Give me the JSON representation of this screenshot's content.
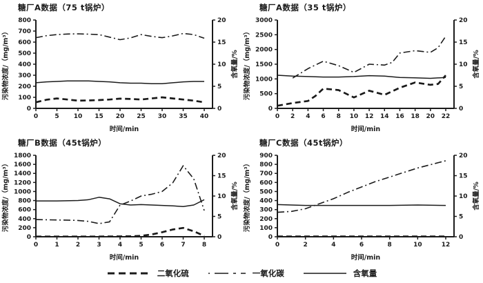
{
  "figure": {
    "background": "#ffffff",
    "line_color": "#1a1a1a"
  },
  "legend": {
    "items": [
      {
        "name": "so2",
        "label": "二氧化硫",
        "style": "dashed"
      },
      {
        "name": "co",
        "label": "一氧化碳",
        "style": "dashdot"
      },
      {
        "name": "o2",
        "label": "含氧量",
        "style": "solid"
      }
    ]
  },
  "chart_data": [
    {
      "type": "line",
      "title": "糖厂A数据（75 t锅炉）",
      "xlabel": "时间/min",
      "ylabel_left": "污染物浓度/（mg/m³）",
      "ylabel_right": "含氧量/%",
      "xlim": [
        0,
        40
      ],
      "xticks": [
        0,
        5,
        10,
        15,
        20,
        25,
        30,
        35,
        40
      ],
      "ylim_left": [
        0,
        800
      ],
      "yticks_left": [
        0,
        100,
        200,
        300,
        400,
        500,
        600,
        700,
        800
      ],
      "ylim_right": [
        0,
        20
      ],
      "yticks_right": [
        0,
        5,
        10,
        15,
        20
      ],
      "grid": false,
      "series": [
        {
          "name": "二氧化硫",
          "style": "dashed",
          "axis": "left",
          "x": [
            0,
            2.5,
            5,
            7.5,
            10,
            12.5,
            15,
            17.5,
            20,
            22.5,
            25,
            27.5,
            30,
            32.5,
            35,
            37.5,
            40
          ],
          "y": [
            55,
            78,
            90,
            80,
            70,
            72,
            75,
            80,
            88,
            85,
            80,
            90,
            100,
            90,
            80,
            70,
            55
          ]
        },
        {
          "name": "一氧化碳",
          "style": "dashdot",
          "axis": "left",
          "x": [
            0,
            2.5,
            5,
            7.5,
            10,
            12.5,
            15,
            17.5,
            20,
            22.5,
            25,
            27.5,
            30,
            32.5,
            35,
            37.5,
            40
          ],
          "y": [
            640,
            658,
            668,
            673,
            675,
            672,
            668,
            645,
            622,
            638,
            668,
            652,
            640,
            656,
            678,
            668,
            635
          ]
        },
        {
          "name": "含氧量",
          "style": "solid",
          "axis": "right",
          "x": [
            0,
            2.5,
            5,
            7.5,
            10,
            12.5,
            15,
            17.5,
            20,
            22.5,
            25,
            27.5,
            30,
            32.5,
            35,
            37.5,
            40
          ],
          "y": [
            5.8,
            6.0,
            6.1,
            6.2,
            6.2,
            6.2,
            6.1,
            6.0,
            5.8,
            5.7,
            5.7,
            5.6,
            5.6,
            5.8,
            6.0,
            6.1,
            6.1
          ]
        }
      ]
    },
    {
      "type": "line",
      "title": "糖厂A数据（35 t锅炉）",
      "xlabel": "时间/min",
      "ylabel_left": "污染物浓度/（mg/m³）",
      "ylabel_right": "含氧量/%",
      "xlim": [
        0,
        22
      ],
      "xticks": [
        0,
        2,
        4,
        6,
        8,
        10,
        12,
        14,
        16,
        18,
        20,
        22
      ],
      "ylim_left": [
        0,
        3000
      ],
      "yticks_left": [
        0,
        500,
        1000,
        1500,
        2000,
        2500,
        3000
      ],
      "ylim_right": [
        0,
        20
      ],
      "yticks_right": [
        0,
        5,
        10,
        15,
        20
      ],
      "grid": false,
      "series": [
        {
          "name": "二氧化硫",
          "style": "dashed",
          "axis": "left",
          "x": [
            0,
            2,
            4,
            5,
            6,
            8,
            10,
            12,
            14,
            16,
            18,
            20,
            21,
            22
          ],
          "y": [
            90,
            180,
            250,
            430,
            670,
            620,
            370,
            600,
            460,
            700,
            880,
            800,
            830,
            1120
          ]
        },
        {
          "name": "一氧化碳",
          "style": "dashdot",
          "axis": "left",
          "x": [
            2,
            4,
            6,
            8,
            10,
            12,
            14,
            15,
            16,
            18,
            20,
            21,
            22
          ],
          "y": [
            1030,
            1350,
            1600,
            1450,
            1220,
            1500,
            1470,
            1560,
            1880,
            1960,
            1900,
            2060,
            2450
          ]
        },
        {
          "name": "含氧量",
          "style": "solid",
          "axis": "right",
          "x": [
            0,
            2,
            4,
            6,
            8,
            10,
            12,
            14,
            16,
            18,
            20,
            22
          ],
          "y": [
            7.5,
            7.3,
            7.2,
            7.1,
            7.1,
            7.2,
            7.4,
            7.3,
            7.0,
            6.9,
            6.8,
            7.0
          ]
        }
      ]
    },
    {
      "type": "line",
      "title": "糖厂B数据（45t锅炉）",
      "xlabel": "时间/min",
      "ylabel_left": "污染物浓度/（mg/m³）",
      "ylabel_right": "含氧量/%",
      "xlim": [
        0,
        8
      ],
      "xticks": [
        0,
        1,
        2,
        3,
        4,
        5,
        6,
        7,
        8
      ],
      "ylim_left": [
        0,
        1800
      ],
      "yticks_left": [
        0,
        200,
        400,
        600,
        800,
        1000,
        1200,
        1400,
        1600,
        1800
      ],
      "ylim_right": [
        0,
        20
      ],
      "yticks_right": [
        0,
        5,
        10,
        15,
        20
      ],
      "grid": false,
      "series": [
        {
          "name": "二氧化硫",
          "style": "dashed",
          "axis": "left",
          "x": [
            0,
            1,
            2,
            3,
            4,
            4.5,
            5,
            5.5,
            6,
            6.5,
            7,
            7.5,
            8
          ],
          "y": [
            5,
            5,
            5,
            5,
            8,
            10,
            20,
            50,
            100,
            160,
            195,
            120,
            20
          ]
        },
        {
          "name": "一氧化碳",
          "style": "dashdot",
          "axis": "left",
          "x": [
            0,
            0.5,
            1,
            1.5,
            2,
            2.5,
            3,
            3.5,
            4,
            4.5,
            5,
            5.5,
            6,
            6.5,
            7,
            7.5,
            8
          ],
          "y": [
            380,
            375,
            370,
            368,
            360,
            340,
            290,
            330,
            700,
            790,
            900,
            940,
            1000,
            1190,
            1570,
            1280,
            580
          ]
        },
        {
          "name": "含氧量",
          "style": "solid",
          "axis": "right",
          "x": [
            0,
            1,
            2,
            2.5,
            3,
            3.5,
            4,
            4.5,
            5,
            5.5,
            6,
            6.5,
            7,
            7.5,
            8
          ],
          "y": [
            8.8,
            8.8,
            8.9,
            9.1,
            9.7,
            9.3,
            8.1,
            7.8,
            7.9,
            7.8,
            7.7,
            7.6,
            7.4,
            7.8,
            9.1
          ]
        }
      ]
    },
    {
      "type": "line",
      "title": "糖厂C数据（45t锅炉）",
      "xlabel": "时间/min",
      "ylabel_left": "污染物浓度/（mg/m³）",
      "ylabel_right": "含氧量/%",
      "xlim": [
        0,
        12
      ],
      "xticks": [
        0,
        2,
        4,
        6,
        8,
        10,
        12
      ],
      "ylim_left": [
        0,
        900
      ],
      "yticks_left": [
        0,
        100,
        200,
        300,
        400,
        500,
        600,
        700,
        800,
        900
      ],
      "ylim_right": [
        0,
        20
      ],
      "yticks_right": [
        0,
        5,
        10,
        15,
        20
      ],
      "grid": false,
      "series": [
        {
          "name": "二氧化硫",
          "style": "dashed",
          "axis": "left",
          "x": [
            0,
            2,
            4,
            6,
            8,
            10,
            12
          ],
          "y": [
            3,
            3,
            3,
            3,
            3,
            3,
            3
          ]
        },
        {
          "name": "一氧化碳",
          "style": "dashdot",
          "axis": "left",
          "x": [
            0,
            1,
            2,
            3,
            4,
            5,
            6,
            7,
            8,
            9,
            10,
            11,
            12
          ],
          "y": [
            270,
            280,
            310,
            365,
            420,
            490,
            550,
            610,
            660,
            710,
            760,
            800,
            840
          ]
        },
        {
          "name": "含氧量",
          "style": "solid",
          "axis": "right",
          "x": [
            0,
            1,
            2,
            3,
            4,
            6,
            8,
            10,
            12
          ],
          "y": [
            7.9,
            7.8,
            7.7,
            7.7,
            7.7,
            7.7,
            7.7,
            7.8,
            7.7
          ]
        }
      ]
    }
  ]
}
